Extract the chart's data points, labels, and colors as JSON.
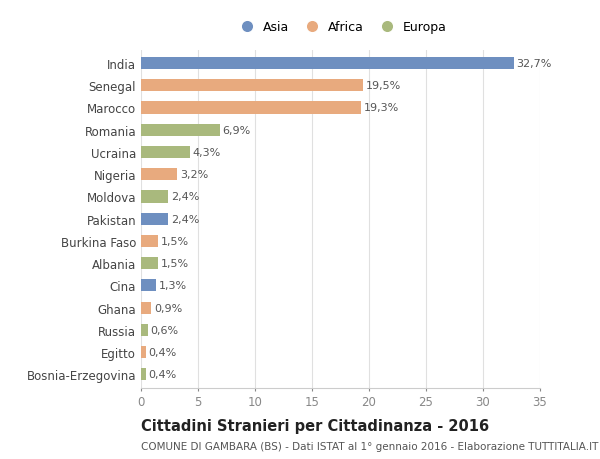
{
  "countries": [
    "India",
    "Senegal",
    "Marocco",
    "Romania",
    "Ucraina",
    "Nigeria",
    "Moldova",
    "Pakistan",
    "Burkina Faso",
    "Albania",
    "Cina",
    "Ghana",
    "Russia",
    "Egitto",
    "Bosnia-Erzegovina"
  ],
  "values": [
    32.7,
    19.5,
    19.3,
    6.9,
    4.3,
    3.2,
    2.4,
    2.4,
    1.5,
    1.5,
    1.3,
    0.9,
    0.6,
    0.4,
    0.4
  ],
  "labels": [
    "32,7%",
    "19,5%",
    "19,3%",
    "6,9%",
    "4,3%",
    "3,2%",
    "2,4%",
    "2,4%",
    "1,5%",
    "1,5%",
    "1,3%",
    "0,9%",
    "0,6%",
    "0,4%",
    "0,4%"
  ],
  "continents": [
    "Asia",
    "Africa",
    "Africa",
    "Europa",
    "Europa",
    "Africa",
    "Europa",
    "Asia",
    "Africa",
    "Europa",
    "Asia",
    "Africa",
    "Europa",
    "Africa",
    "Europa"
  ],
  "colors": {
    "Asia": "#6e8fc0",
    "Africa": "#e8aa7e",
    "Europa": "#a9b97d"
  },
  "title": "Cittadini Stranieri per Cittadinanza - 2016",
  "subtitle": "COMUNE DI GAMBARA (BS) - Dati ISTAT al 1° gennaio 2016 - Elaborazione TUTTITALIA.IT",
  "xlim": [
    0,
    35
  ],
  "xticks": [
    0,
    5,
    10,
    15,
    20,
    25,
    30,
    35
  ],
  "background_color": "#ffffff",
  "grid_color": "#e0e0e0",
  "bar_height": 0.55,
  "title_fontsize": 10.5,
  "subtitle_fontsize": 7.5,
  "tick_fontsize": 8.5,
  "label_fontsize": 8
}
